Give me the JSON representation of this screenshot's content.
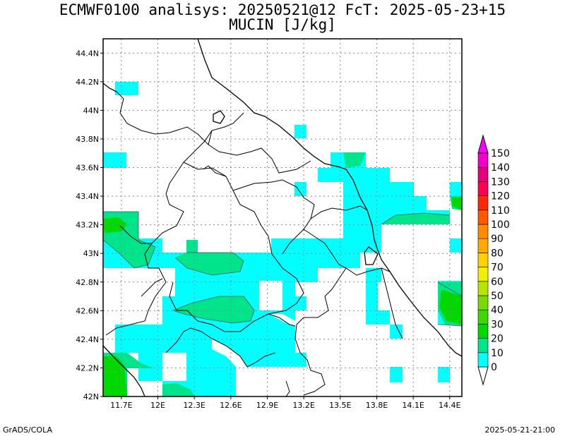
{
  "title": {
    "line1": "ECMWF0100 analisys: 20250521@12 FcT: 2025-05-23+15",
    "line2": "MUCIN [J/kg]"
  },
  "footer": {
    "left": "GrADS/COLA",
    "right": "2025-05-21-21:00"
  },
  "axes": {
    "lat_labels": [
      "44.4N",
      "44.2N",
      "44N",
      "43.8N",
      "43.6N",
      "43.4N",
      "43.2N",
      "43N",
      "42.8N",
      "42.6N",
      "42.4N",
      "42.2N",
      "42N"
    ],
    "lon_labels": [
      "11.7E",
      "12E",
      "12.3E",
      "12.6E",
      "12.9E",
      "13.2E",
      "13.5E",
      "13.8E",
      "14.1E",
      "14.4E"
    ]
  },
  "colorbar": {
    "levels": [
      "0",
      "10",
      "20",
      "30",
      "40",
      "50",
      "60",
      "70",
      "80",
      "90",
      "100",
      "110",
      "120",
      "130",
      "140",
      "150"
    ],
    "colors": [
      "#00ffff",
      "#00e48c",
      "#00d800",
      "#3cd800",
      "#78dc00",
      "#b4e600",
      "#f0f000",
      "#ffd200",
      "#ffaa00",
      "#ff8c00",
      "#ff5a00",
      "#ff2800",
      "#ff0050",
      "#e6007d",
      "#f000c8",
      "#ff00ff"
    ]
  },
  "map": {
    "lon_range": [
      11.55,
      14.5
    ],
    "lat_range": [
      42.0,
      44.5
    ],
    "grid": "dotted",
    "field_colors": {
      "cyan": "#00ffff",
      "green1": "#00e48c",
      "green2": "#00d800"
    }
  }
}
